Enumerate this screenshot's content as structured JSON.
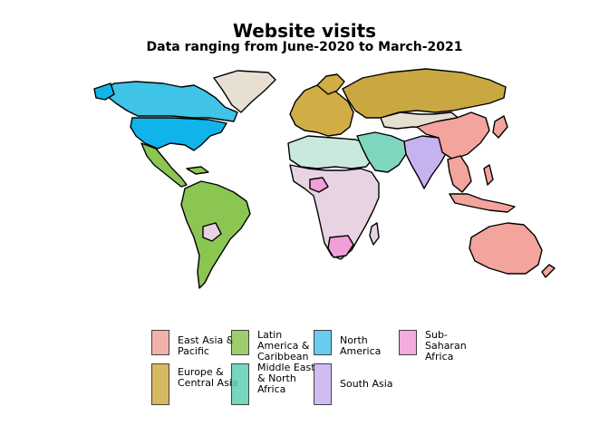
{
  "title": "Website visits",
  "subtitle": "Data ranging from June-2020 to March-2021",
  "colors": {
    "east_asia_pacific": "#f2a49d",
    "europe_central_asia": "#d1ad46",
    "latin_america": "#8cc652",
    "middle_east": "#7fd6bf",
    "north_america": "#4fc2ea",
    "south_asia": "#c7b2f0",
    "sub_saharan_africa": "#f09fd8",
    "sub_saharan_light": "#e8d3e2",
    "middle_east_light": "#c9e9df",
    "low_visits": "#e7e0d2"
  },
  "legend": [
    {
      "label": "East Asia & Pacific",
      "color": "#f2a49d"
    },
    {
      "label": "Europe & Central Asia",
      "color": "#d1ad46"
    },
    {
      "label": "Latin America & Caribbean",
      "color": "#8cc652"
    },
    {
      "label": "Middle East & North Africa",
      "color": "#5fd0b5"
    },
    {
      "label": "North America",
      "color": "#4fc2ea"
    },
    {
      "label": "South Asia",
      "color": "#c7b2f0"
    },
    {
      "label": "Sub-Saharan Africa",
      "color": "#f09fd8"
    }
  ]
}
